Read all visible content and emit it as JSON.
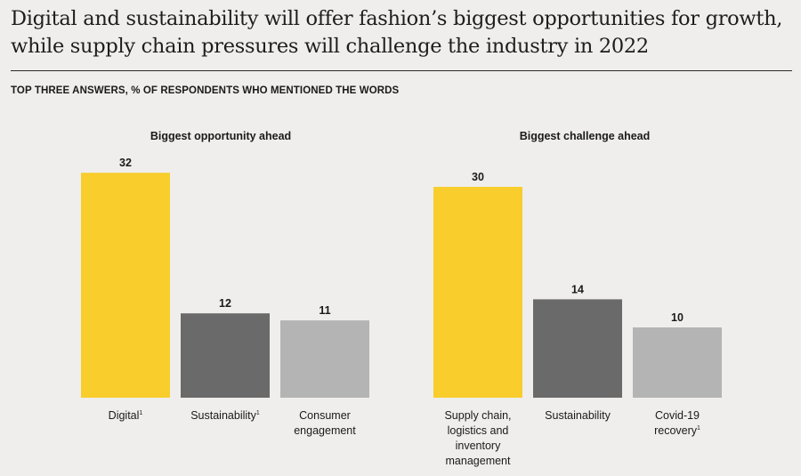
{
  "title": "Digital and sustainability will offer fashion’s biggest opportunities for growth, while supply chain pressures will challenge the industry in 2022",
  "subtitle": "TOP THREE ANSWERS, % OF RESPONDENTS WHO MENTIONED THE WORDS",
  "chart_data": [
    {
      "type": "bar",
      "title": "Biggest opportunity ahead",
      "categories": [
        {
          "text": "Digital",
          "note": "1"
        },
        {
          "text": "Sustainability",
          "note": "1"
        },
        {
          "text": "Consumer engagement",
          "note": ""
        }
      ],
      "values": [
        32,
        12,
        11
      ],
      "colors": [
        "#f8cd2c",
        "#6b6a6a",
        "#b4b4b4"
      ],
      "ylim": [
        0,
        32
      ],
      "grid": false,
      "legend": false
    },
    {
      "type": "bar",
      "title": "Biggest challenge ahead",
      "categories": [
        {
          "text": "Supply chain, logistics and inventory management",
          "note": ""
        },
        {
          "text": "Sustainability",
          "note": ""
        },
        {
          "text": "Covid-19 recovery",
          "note": "1"
        }
      ],
      "values": [
        30,
        14,
        10
      ],
      "colors": [
        "#f8cd2c",
        "#6b6a6a",
        "#b4b4b4"
      ],
      "ylim": [
        0,
        32
      ],
      "grid": false,
      "legend": false
    }
  ]
}
